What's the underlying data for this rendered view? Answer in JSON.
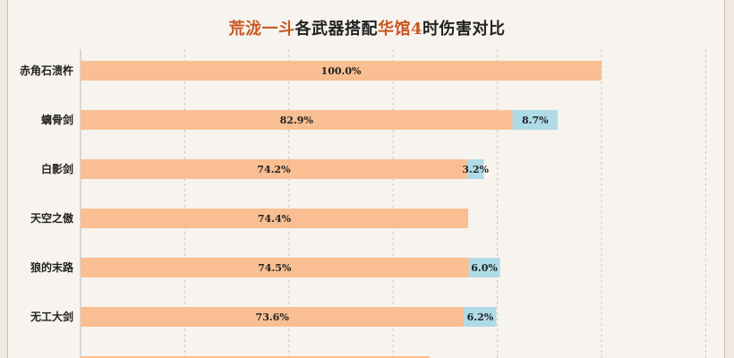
{
  "chart_data": {
    "type": "bar",
    "title_parts": [
      {
        "text": "荒泷一斗",
        "highlight": true
      },
      {
        "text": "各武器搭配",
        "highlight": false
      },
      {
        "text": "华馆4",
        "highlight": true
      },
      {
        "text": "时伤害对比",
        "highlight": false
      }
    ],
    "orientation": "horizontal",
    "stacked": true,
    "categories": [
      "赤角石溃杵",
      "螭骨剑",
      "白影剑",
      "天空之傲",
      "狼的末路",
      "无工大剑"
    ],
    "series": [
      {
        "values": [
          100.0,
          82.9,
          74.2,
          74.4,
          74.5,
          73.6
        ],
        "labels": [
          "100.0%",
          "82.9%",
          "74.2%",
          "74.4%",
          "74.5%",
          "73.6%"
        ]
      },
      {
        "values": [
          0,
          8.7,
          3.2,
          0,
          6.0,
          6.2
        ],
        "labels": [
          "",
          "8.7%",
          "3.2%",
          "",
          "6.0%",
          "6.2%"
        ]
      }
    ],
    "partial_bar_value": 67.0,
    "xlim": [
      0,
      120
    ],
    "grid": true,
    "colors": {
      "primary": "#f9be92",
      "secondary": "#aedbe6",
      "grid": "#c8c8c8",
      "highlight": "#c8561f"
    }
  }
}
